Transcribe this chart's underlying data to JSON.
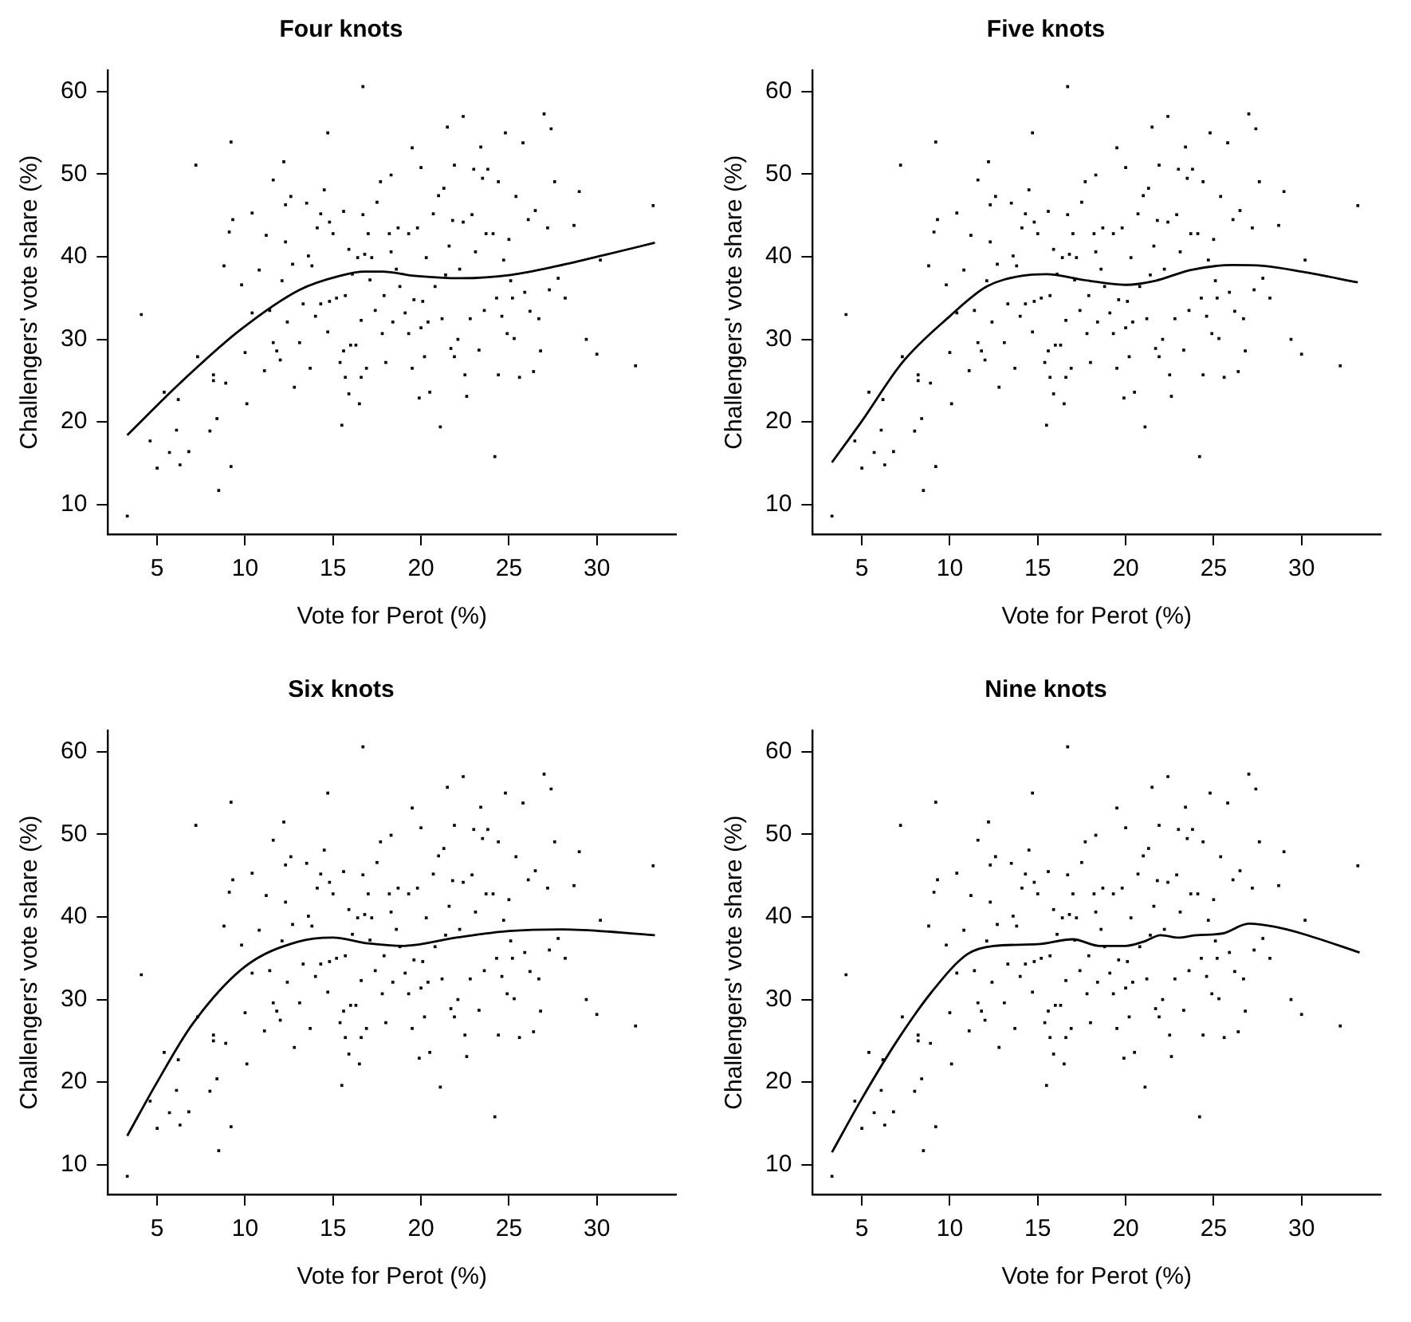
{
  "chart_data": [
    {
      "type": "scatter",
      "title": "Four knots",
      "xlabel": "Vote for Perot (%)",
      "ylabel": "Challengers' vote share (%)",
      "xlim": [
        2.2,
        34.5
      ],
      "ylim": [
        6.4,
        62.6
      ],
      "xticks": [
        5,
        10,
        15,
        20,
        25,
        30
      ],
      "yticks": [
        10,
        20,
        30,
        40,
        50,
        60
      ],
      "series": [
        {
          "type": "scatter",
          "marker": "square",
          "color": "#000000",
          "x": [
            3.3,
            4.1,
            4.6,
            5.0,
            5.4,
            5.7,
            6.1,
            6.2,
            6.3,
            6.8,
            7.2,
            7.3,
            8.0,
            8.2,
            8.2,
            8.4,
            8.5,
            8.8,
            8.9,
            9.1,
            9.2,
            9.2,
            9.3,
            9.8,
            10.0,
            10.1,
            10.4,
            10.4,
            10.8,
            11.1,
            11.2,
            11.4,
            11.6,
            11.6,
            11.8,
            12.0,
            12.1,
            12.2,
            12.3,
            12.3,
            12.4,
            12.6,
            12.7,
            12.8,
            13.1,
            13.3,
            13.5,
            13.6,
            13.7,
            13.8,
            14.0,
            14.1,
            14.3,
            14.3,
            14.5,
            14.7,
            14.7,
            14.8,
            14.8,
            15.0,
            15.2,
            15.4,
            15.5,
            15.6,
            15.6,
            15.7,
            15.7,
            15.9,
            15.9,
            16.0,
            16.1,
            16.3,
            16.4,
            16.5,
            16.6,
            16.6,
            16.7,
            16.7,
            16.8,
            16.9,
            17.0,
            17.1,
            17.2,
            17.4,
            17.5,
            17.7,
            17.8,
            17.9,
            18.0,
            18.2,
            18.3,
            18.3,
            18.4,
            18.6,
            18.7,
            18.8,
            19.1,
            19.3,
            19.3,
            19.5,
            19.5,
            19.6,
            19.8,
            19.9,
            20.0,
            20.0,
            20.1,
            20.2,
            20.3,
            20.4,
            20.5,
            20.7,
            20.8,
            21.0,
            21.1,
            21.2,
            21.3,
            21.4,
            21.5,
            21.6,
            21.7,
            21.8,
            21.9,
            21.9,
            22.1,
            22.2,
            22.4,
            22.4,
            22.5,
            22.6,
            22.8,
            22.9,
            23.0,
            23.1,
            23.3,
            23.4,
            23.5,
            23.6,
            23.7,
            23.8,
            24.1,
            24.2,
            24.3,
            24.4,
            24.4,
            24.6,
            24.7,
            24.8,
            24.9,
            25.0,
            25.1,
            25.2,
            25.3,
            25.4,
            25.6,
            25.8,
            25.9,
            26.1,
            26.2,
            26.4,
            26.5,
            26.7,
            26.8,
            27.0,
            27.2,
            27.3,
            27.4,
            27.6,
            27.8,
            28.2,
            28.7,
            29.0,
            29.4,
            30.0,
            30.2,
            32.2,
            33.2
          ],
          "values": [
            8.6,
            33.0,
            17.7,
            14.4,
            23.6,
            16.3,
            19.0,
            22.7,
            14.8,
            16.4,
            51.1,
            27.9,
            18.9,
            25.7,
            25.0,
            20.4,
            11.7,
            38.9,
            24.7,
            43.0,
            53.9,
            14.6,
            44.5,
            36.6,
            28.4,
            22.2,
            33.2,
            45.3,
            38.4,
            26.2,
            42.6,
            33.5,
            49.3,
            29.6,
            28.6,
            27.5,
            37.1,
            51.5,
            41.8,
            46.3,
            32.1,
            47.3,
            39.1,
            24.2,
            29.6,
            34.3,
            46.5,
            40.1,
            26.5,
            38.9,
            32.8,
            43.5,
            45.2,
            34.3,
            48.1,
            30.9,
            55.0,
            34.6,
            44.2,
            42.8,
            35.0,
            27.2,
            19.6,
            28.6,
            45.5,
            35.3,
            25.4,
            23.4,
            40.9,
            29.3,
            37.9,
            29.3,
            39.9,
            22.2,
            25.4,
            32.3,
            60.6,
            45.1,
            40.3,
            26.5,
            42.8,
            37.2,
            39.9,
            33.5,
            46.6,
            49.1,
            30.7,
            35.3,
            27.2,
            42.8,
            40.6,
            49.9,
            32.1,
            38.5,
            43.5,
            36.4,
            33.2,
            30.7,
            42.8,
            26.5,
            53.2,
            34.8,
            43.5,
            22.9,
            50.8,
            31.4,
            34.6,
            27.9,
            39.9,
            32.1,
            23.6,
            45.2,
            36.4,
            47.4,
            19.4,
            32.5,
            48.3,
            37.8,
            55.7,
            41.3,
            28.9,
            44.4,
            27.9,
            51.1,
            30.0,
            38.5,
            57.0,
            44.2,
            25.7,
            23.1,
            32.5,
            45.1,
            50.6,
            40.6,
            28.7,
            53.3,
            49.5,
            33.5,
            42.8,
            50.6,
            42.8,
            15.8,
            35.0,
            49.1,
            25.7,
            32.8,
            39.6,
            55.0,
            30.7,
            42.1,
            37.1,
            35.0,
            30.1,
            47.3,
            25.4,
            53.8,
            35.7,
            44.5,
            33.4,
            26.1,
            45.6,
            32.5,
            28.6,
            57.3,
            43.5,
            36.0,
            55.5,
            49.1,
            37.4,
            35.0,
            43.8,
            47.9,
            30.0,
            28.2,
            39.6,
            26.8,
            46.2
          ]
        },
        {
          "type": "line",
          "marker": "none",
          "line_style": "solid",
          "color": "#000000",
          "x": [
            3.3,
            6.3,
            9.7,
            13.1,
            15.4,
            16.8,
            17.8,
            19.6,
            22.3,
            25.1,
            27.8,
            30.6,
            33.3
          ],
          "values": [
            18.4,
            24.7,
            31.1,
            36.0,
            37.7,
            38.2,
            38.2,
            37.7,
            37.4,
            37.8,
            38.9,
            40.3,
            41.7
          ]
        }
      ]
    },
    {
      "type": "scatter",
      "title": "Five knots",
      "xlabel": "Vote for Perot (%)",
      "ylabel": "Challengers' vote share (%)",
      "xlim": [
        2.2,
        34.5
      ],
      "ylim": [
        6.4,
        62.6
      ],
      "xticks": [
        5,
        10,
        15,
        20,
        25,
        30
      ],
      "yticks": [
        10,
        20,
        30,
        40,
        50,
        60
      ],
      "series": [
        {
          "type": "scatter",
          "marker": "square",
          "color": "#000000",
          "x": [
            3.3,
            4.1,
            4.6,
            5.0,
            5.4,
            5.7,
            6.1,
            6.2,
            6.3,
            6.8,
            7.2,
            7.3,
            8.0,
            8.2,
            8.2,
            8.4,
            8.5,
            8.8,
            8.9,
            9.1,
            9.2,
            9.2,
            9.3,
            9.8,
            10.0,
            10.1,
            10.4,
            10.4,
            10.8,
            11.1,
            11.2,
            11.4,
            11.6,
            11.6,
            11.8,
            12.0,
            12.1,
            12.2,
            12.3,
            12.3,
            12.4,
            12.6,
            12.7,
            12.8,
            13.1,
            13.3,
            13.5,
            13.6,
            13.7,
            13.8,
            14.0,
            14.1,
            14.3,
            14.3,
            14.5,
            14.7,
            14.7,
            14.8,
            14.8,
            15.0,
            15.2,
            15.4,
            15.5,
            15.6,
            15.6,
            15.7,
            15.7,
            15.9,
            15.9,
            16.0,
            16.1,
            16.3,
            16.4,
            16.5,
            16.6,
            16.6,
            16.7,
            16.7,
            16.8,
            16.9,
            17.0,
            17.1,
            17.2,
            17.4,
            17.5,
            17.7,
            17.8,
            17.9,
            18.0,
            18.2,
            18.3,
            18.3,
            18.4,
            18.6,
            18.7,
            18.8,
            19.1,
            19.3,
            19.3,
            19.5,
            19.5,
            19.6,
            19.8,
            19.9,
            20.0,
            20.0,
            20.1,
            20.2,
            20.3,
            20.4,
            20.5,
            20.7,
            20.8,
            21.0,
            21.1,
            21.2,
            21.3,
            21.4,
            21.5,
            21.6,
            21.7,
            21.8,
            21.9,
            21.9,
            22.1,
            22.2,
            22.4,
            22.4,
            22.5,
            22.6,
            22.8,
            22.9,
            23.0,
            23.1,
            23.3,
            23.4,
            23.5,
            23.6,
            23.7,
            23.8,
            24.1,
            24.2,
            24.3,
            24.4,
            24.4,
            24.6,
            24.7,
            24.8,
            24.9,
            25.0,
            25.1,
            25.2,
            25.3,
            25.4,
            25.6,
            25.8,
            25.9,
            26.1,
            26.2,
            26.4,
            26.5,
            26.7,
            26.8,
            27.0,
            27.2,
            27.3,
            27.4,
            27.6,
            27.8,
            28.2,
            28.7,
            29.0,
            29.4,
            30.0,
            30.2,
            32.2,
            33.2
          ],
          "values": [
            8.6,
            33.0,
            17.7,
            14.4,
            23.6,
            16.3,
            19.0,
            22.7,
            14.8,
            16.4,
            51.1,
            27.9,
            18.9,
            25.7,
            25.0,
            20.4,
            11.7,
            38.9,
            24.7,
            43.0,
            53.9,
            14.6,
            44.5,
            36.6,
            28.4,
            22.2,
            33.2,
            45.3,
            38.4,
            26.2,
            42.6,
            33.5,
            49.3,
            29.6,
            28.6,
            27.5,
            37.1,
            51.5,
            41.8,
            46.3,
            32.1,
            47.3,
            39.1,
            24.2,
            29.6,
            34.3,
            46.5,
            40.1,
            26.5,
            38.9,
            32.8,
            43.5,
            45.2,
            34.3,
            48.1,
            30.9,
            55.0,
            34.6,
            44.2,
            42.8,
            35.0,
            27.2,
            19.6,
            28.6,
            45.5,
            35.3,
            25.4,
            23.4,
            40.9,
            29.3,
            37.9,
            29.3,
            39.9,
            22.2,
            25.4,
            32.3,
            60.6,
            45.1,
            40.3,
            26.5,
            42.8,
            37.2,
            39.9,
            33.5,
            46.6,
            49.1,
            30.7,
            35.3,
            27.2,
            42.8,
            40.6,
            49.9,
            32.1,
            38.5,
            43.5,
            36.4,
            33.2,
            30.7,
            42.8,
            26.5,
            53.2,
            34.8,
            43.5,
            22.9,
            50.8,
            31.4,
            34.6,
            27.9,
            39.9,
            32.1,
            23.6,
            45.2,
            36.4,
            47.4,
            19.4,
            32.5,
            48.3,
            37.8,
            55.7,
            41.3,
            28.9,
            44.4,
            27.9,
            51.1,
            30.0,
            38.5,
            57.0,
            44.2,
            25.7,
            23.1,
            32.5,
            45.1,
            50.6,
            40.6,
            28.7,
            53.3,
            49.5,
            33.5,
            42.8,
            50.6,
            42.8,
            15.8,
            35.0,
            49.1,
            25.7,
            32.8,
            39.6,
            55.0,
            30.7,
            42.1,
            37.1,
            35.0,
            30.1,
            47.3,
            25.4,
            53.8,
            35.7,
            44.5,
            33.4,
            26.1,
            45.6,
            32.5,
            28.6,
            57.3,
            43.5,
            36.0,
            55.5,
            49.1,
            37.4,
            35.0,
            43.8,
            47.9,
            30.0,
            28.2,
            39.6,
            26.8,
            46.2
          ]
        },
        {
          "type": "line",
          "marker": "none",
          "line_style": "solid",
          "color": "#000000",
          "x": [
            3.3,
            5.0,
            7.3,
            10.0,
            12.1,
            14.1,
            15.5,
            17.6,
            20.0,
            21.7,
            23.7,
            26.1,
            27.8,
            30.0,
            33.2
          ],
          "values": [
            15.1,
            20.1,
            27.2,
            32.8,
            36.4,
            37.7,
            37.9,
            37.2,
            36.6,
            37.1,
            38.4,
            39.0,
            38.9,
            38.2,
            36.9
          ]
        }
      ]
    },
    {
      "type": "scatter",
      "title": "Six knots",
      "xlabel": "Vote for Perot (%)",
      "ylabel": "Challengers' vote share (%)",
      "xlim": [
        2.2,
        34.5
      ],
      "ylim": [
        6.4,
        62.6
      ],
      "xticks": [
        5,
        10,
        15,
        20,
        25,
        30
      ],
      "yticks": [
        10,
        20,
        30,
        40,
        50,
        60
      ],
      "series": [
        {
          "type": "scatter",
          "marker": "square",
          "color": "#000000",
          "x": [
            3.3,
            4.1,
            4.6,
            5.0,
            5.4,
            5.7,
            6.1,
            6.2,
            6.3,
            6.8,
            7.2,
            7.3,
            8.0,
            8.2,
            8.2,
            8.4,
            8.5,
            8.8,
            8.9,
            9.1,
            9.2,
            9.2,
            9.3,
            9.8,
            10.0,
            10.1,
            10.4,
            10.4,
            10.8,
            11.1,
            11.2,
            11.4,
            11.6,
            11.6,
            11.8,
            12.0,
            12.1,
            12.2,
            12.3,
            12.3,
            12.4,
            12.6,
            12.7,
            12.8,
            13.1,
            13.3,
            13.5,
            13.6,
            13.7,
            13.8,
            14.0,
            14.1,
            14.3,
            14.3,
            14.5,
            14.7,
            14.7,
            14.8,
            14.8,
            15.0,
            15.2,
            15.4,
            15.5,
            15.6,
            15.6,
            15.7,
            15.7,
            15.9,
            15.9,
            16.0,
            16.1,
            16.3,
            16.4,
            16.5,
            16.6,
            16.6,
            16.7,
            16.7,
            16.8,
            16.9,
            17.0,
            17.1,
            17.2,
            17.4,
            17.5,
            17.7,
            17.8,
            17.9,
            18.0,
            18.2,
            18.3,
            18.3,
            18.4,
            18.6,
            18.7,
            18.8,
            19.1,
            19.3,
            19.3,
            19.5,
            19.5,
            19.6,
            19.8,
            19.9,
            20.0,
            20.0,
            20.1,
            20.2,
            20.3,
            20.4,
            20.5,
            20.7,
            20.8,
            21.0,
            21.1,
            21.2,
            21.3,
            21.4,
            21.5,
            21.6,
            21.7,
            21.8,
            21.9,
            21.9,
            22.1,
            22.2,
            22.4,
            22.4,
            22.5,
            22.6,
            22.8,
            22.9,
            23.0,
            23.1,
            23.3,
            23.4,
            23.5,
            23.6,
            23.7,
            23.8,
            24.1,
            24.2,
            24.3,
            24.4,
            24.4,
            24.6,
            24.7,
            24.8,
            24.9,
            25.0,
            25.1,
            25.2,
            25.3,
            25.4,
            25.6,
            25.8,
            25.9,
            26.1,
            26.2,
            26.4,
            26.5,
            26.7,
            26.8,
            27.0,
            27.2,
            27.3,
            27.4,
            27.6,
            27.8,
            28.2,
            28.7,
            29.0,
            29.4,
            30.0,
            30.2,
            32.2,
            33.2
          ],
          "values": [
            8.6,
            33.0,
            17.7,
            14.4,
            23.6,
            16.3,
            19.0,
            22.7,
            14.8,
            16.4,
            51.1,
            27.9,
            18.9,
            25.7,
            25.0,
            20.4,
            11.7,
            38.9,
            24.7,
            43.0,
            53.9,
            14.6,
            44.5,
            36.6,
            28.4,
            22.2,
            33.2,
            45.3,
            38.4,
            26.2,
            42.6,
            33.5,
            49.3,
            29.6,
            28.6,
            27.5,
            37.1,
            51.5,
            41.8,
            46.3,
            32.1,
            47.3,
            39.1,
            24.2,
            29.6,
            34.3,
            46.5,
            40.1,
            26.5,
            38.9,
            32.8,
            43.5,
            45.2,
            34.3,
            48.1,
            30.9,
            55.0,
            34.6,
            44.2,
            42.8,
            35.0,
            27.2,
            19.6,
            28.6,
            45.5,
            35.3,
            25.4,
            23.4,
            40.9,
            29.3,
            37.9,
            29.3,
            39.9,
            22.2,
            25.4,
            32.3,
            60.6,
            45.1,
            40.3,
            26.5,
            42.8,
            37.2,
            39.9,
            33.5,
            46.6,
            49.1,
            30.7,
            35.3,
            27.2,
            42.8,
            40.6,
            49.9,
            32.1,
            38.5,
            43.5,
            36.4,
            33.2,
            30.7,
            42.8,
            26.5,
            53.2,
            34.8,
            43.5,
            22.9,
            50.8,
            31.4,
            34.6,
            27.9,
            39.9,
            32.1,
            23.6,
            45.2,
            36.4,
            47.4,
            19.4,
            32.5,
            48.3,
            37.8,
            55.7,
            41.3,
            28.9,
            44.4,
            27.9,
            51.1,
            30.0,
            38.5,
            57.0,
            44.2,
            25.7,
            23.1,
            32.5,
            45.1,
            50.6,
            40.6,
            28.7,
            53.3,
            49.5,
            33.5,
            42.8,
            50.6,
            42.8,
            15.8,
            35.0,
            49.1,
            25.7,
            32.8,
            39.6,
            55.0,
            30.7,
            42.1,
            37.1,
            35.0,
            30.1,
            47.3,
            25.4,
            53.8,
            35.7,
            44.5,
            33.4,
            26.1,
            45.6,
            32.5,
            28.6,
            57.3,
            43.5,
            36.0,
            55.5,
            49.1,
            37.4,
            35.0,
            43.8,
            47.9,
            30.0,
            28.2,
            39.6,
            26.8,
            46.2
          ]
        },
        {
          "type": "line",
          "marker": "none",
          "line_style": "solid",
          "color": "#000000",
          "x": [
            3.3,
            5.0,
            7.0,
            10.0,
            13.0,
            15.0,
            17.0,
            19.0,
            22.0,
            25.0,
            28.0,
            33.3
          ],
          "values": [
            13.5,
            20.0,
            27.0,
            34.0,
            37.0,
            37.5,
            36.8,
            36.5,
            37.5,
            38.3,
            38.5,
            37.8
          ]
        }
      ]
    },
    {
      "type": "scatter",
      "title": "Nine knots",
      "xlabel": "Vote for Perot (%)",
      "ylabel": "Challengers' vote share (%)",
      "xlim": [
        2.2,
        34.5
      ],
      "ylim": [
        6.4,
        62.6
      ],
      "xticks": [
        5,
        10,
        15,
        20,
        25,
        30
      ],
      "yticks": [
        10,
        20,
        30,
        40,
        50,
        60
      ],
      "series": [
        {
          "type": "scatter",
          "marker": "square",
          "color": "#000000",
          "x": [
            3.3,
            4.1,
            4.6,
            5.0,
            5.4,
            5.7,
            6.1,
            6.2,
            6.3,
            6.8,
            7.2,
            7.3,
            8.0,
            8.2,
            8.2,
            8.4,
            8.5,
            8.8,
            8.9,
            9.1,
            9.2,
            9.2,
            9.3,
            9.8,
            10.0,
            10.1,
            10.4,
            10.4,
            10.8,
            11.1,
            11.2,
            11.4,
            11.6,
            11.6,
            11.8,
            12.0,
            12.1,
            12.2,
            12.3,
            12.3,
            12.4,
            12.6,
            12.7,
            12.8,
            13.1,
            13.3,
            13.5,
            13.6,
            13.7,
            13.8,
            14.0,
            14.1,
            14.3,
            14.3,
            14.5,
            14.7,
            14.7,
            14.8,
            14.8,
            15.0,
            15.2,
            15.4,
            15.5,
            15.6,
            15.6,
            15.7,
            15.7,
            15.9,
            15.9,
            16.0,
            16.1,
            16.3,
            16.4,
            16.5,
            16.6,
            16.6,
            16.7,
            16.7,
            16.8,
            16.9,
            17.0,
            17.1,
            17.2,
            17.4,
            17.5,
            17.7,
            17.8,
            17.9,
            18.0,
            18.2,
            18.3,
            18.3,
            18.4,
            18.6,
            18.7,
            18.8,
            19.1,
            19.3,
            19.3,
            19.5,
            19.5,
            19.6,
            19.8,
            19.9,
            20.0,
            20.0,
            20.1,
            20.2,
            20.3,
            20.4,
            20.5,
            20.7,
            20.8,
            21.0,
            21.1,
            21.2,
            21.3,
            21.4,
            21.5,
            21.6,
            21.7,
            21.8,
            21.9,
            21.9,
            22.1,
            22.2,
            22.4,
            22.4,
            22.5,
            22.6,
            22.8,
            22.9,
            23.0,
            23.1,
            23.3,
            23.4,
            23.5,
            23.6,
            23.7,
            23.8,
            24.1,
            24.2,
            24.3,
            24.4,
            24.4,
            24.6,
            24.7,
            24.8,
            24.9,
            25.0,
            25.1,
            25.2,
            25.3,
            25.4,
            25.6,
            25.8,
            25.9,
            26.1,
            26.2,
            26.4,
            26.5,
            26.7,
            26.8,
            27.0,
            27.2,
            27.3,
            27.4,
            27.6,
            27.8,
            28.2,
            28.7,
            29.0,
            29.4,
            30.0,
            30.2,
            32.2,
            33.2
          ],
          "values": [
            8.6,
            33.0,
            17.7,
            14.4,
            23.6,
            16.3,
            19.0,
            22.7,
            14.8,
            16.4,
            51.1,
            27.9,
            18.9,
            25.7,
            25.0,
            20.4,
            11.7,
            38.9,
            24.7,
            43.0,
            53.9,
            14.6,
            44.5,
            36.6,
            28.4,
            22.2,
            33.2,
            45.3,
            38.4,
            26.2,
            42.6,
            33.5,
            49.3,
            29.6,
            28.6,
            27.5,
            37.1,
            51.5,
            41.8,
            46.3,
            32.1,
            47.3,
            39.1,
            24.2,
            29.6,
            34.3,
            46.5,
            40.1,
            26.5,
            38.9,
            32.8,
            43.5,
            45.2,
            34.3,
            48.1,
            30.9,
            55.0,
            34.6,
            44.2,
            42.8,
            35.0,
            27.2,
            19.6,
            28.6,
            45.5,
            35.3,
            25.4,
            23.4,
            40.9,
            29.3,
            37.9,
            29.3,
            39.9,
            22.2,
            25.4,
            32.3,
            60.6,
            45.1,
            40.3,
            26.5,
            42.8,
            37.2,
            39.9,
            33.5,
            46.6,
            49.1,
            30.7,
            35.3,
            27.2,
            42.8,
            40.6,
            49.9,
            32.1,
            38.5,
            43.5,
            36.4,
            33.2,
            30.7,
            42.8,
            26.5,
            53.2,
            34.8,
            43.5,
            22.9,
            50.8,
            31.4,
            34.6,
            27.9,
            39.9,
            32.1,
            23.6,
            45.2,
            36.4,
            47.4,
            19.4,
            32.5,
            48.3,
            37.8,
            55.7,
            41.3,
            28.9,
            44.4,
            27.9,
            51.1,
            30.0,
            38.5,
            57.0,
            44.2,
            25.7,
            23.1,
            32.5,
            45.1,
            50.6,
            40.6,
            28.7,
            53.3,
            49.5,
            33.5,
            42.8,
            50.6,
            42.8,
            15.8,
            35.0,
            49.1,
            25.7,
            32.8,
            39.6,
            55.0,
            30.7,
            42.1,
            37.1,
            35.0,
            30.1,
            47.3,
            25.4,
            53.8,
            35.7,
            44.5,
            33.4,
            26.1,
            45.6,
            32.5,
            28.6,
            57.3,
            43.5,
            36.0,
            55.5,
            49.1,
            37.4,
            35.0,
            43.8,
            47.9,
            30.0,
            28.2,
            39.6,
            26.8,
            46.2
          ]
        },
        {
          "type": "line",
          "marker": "none",
          "line_style": "solid",
          "color": "#000000",
          "x": [
            3.3,
            5.0,
            7.0,
            9.0,
            11.0,
            12.5,
            15.0,
            17.0,
            18.5,
            20.0,
            21.0,
            22.0,
            23.0,
            24.0,
            25.5,
            27.0,
            28.5,
            30.0,
            33.3
          ],
          "values": [
            11.5,
            18.0,
            25.0,
            31.0,
            35.5,
            36.5,
            36.7,
            37.3,
            36.5,
            36.5,
            37.0,
            37.8,
            37.5,
            37.8,
            38.0,
            39.2,
            38.8,
            38.0,
            35.7
          ]
        }
      ]
    }
  ]
}
